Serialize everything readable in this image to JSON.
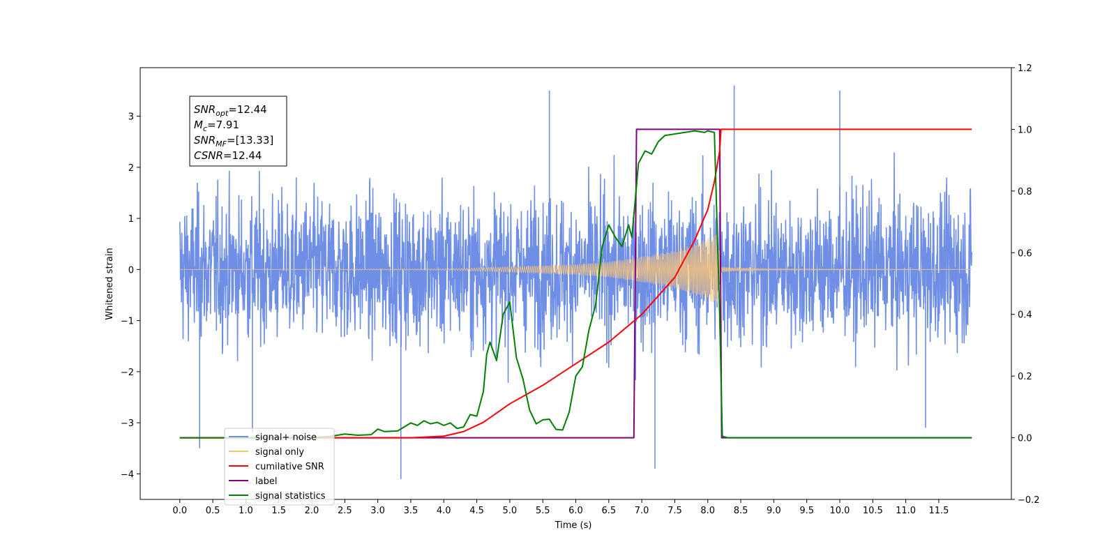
{
  "chart_data": {
    "type": "line",
    "xlabel": "Time (s)",
    "ylabel_left": "Whitened strain",
    "ylabel_right": "",
    "x_ticks": [
      "0.0",
      "0.5",
      "1.0",
      "1.5",
      "2.0",
      "2.5",
      "3.0",
      "3.5",
      "4.0",
      "4.5",
      "5.0",
      "5.5",
      "6.0",
      "6.5",
      "7.0",
      "7.5",
      "8.0",
      "8.5",
      "9.0",
      "9.5",
      "10.0",
      "10.5",
      "11.0",
      "11.5"
    ],
    "y_left_ticks": [
      "3",
      "2",
      "1",
      "0",
      "−1",
      "−2",
      "−3",
      "−4"
    ],
    "y_right_ticks": [
      "1.2",
      "1.0",
      "0.8",
      "0.6",
      "0.4",
      "0.2",
      "0.0",
      "−0.2"
    ],
    "xlim": [
      -0.6,
      12.6
    ],
    "ylim_left": [
      -4.5,
      3.95
    ],
    "ylim_right": [
      -0.2,
      1.2
    ],
    "info_box": [
      {
        "main": "SNR",
        "sub": "opt",
        "rest": "=12.44"
      },
      {
        "main": "M",
        "sub": "c",
        "rest": "=7.91"
      },
      {
        "main": "SNR",
        "sub": "MF",
        "rest": "=[13.33]"
      },
      {
        "main": "CSNR",
        "sub": "",
        "rest": "=12.44"
      }
    ],
    "legend": {
      "placement": "lower-left",
      "entries": [
        {
          "label": "signal+ noise",
          "color": "#6f8fe6"
        },
        {
          "label": "signal only",
          "color": "#f5c27a"
        },
        {
          "label": "cumilative SNR",
          "color": "#ff0000"
        },
        {
          "label": "label",
          "color": "#800080"
        },
        {
          "label": "signal statistics",
          "color": "#008000"
        }
      ]
    },
    "series": [
      {
        "name": "signal+ noise",
        "axis": "left",
        "color": "#6f8fe6",
        "x_range": [
          0.0,
          12.0
        ],
        "envelope": [
          [
            0.0,
            1.8
          ],
          [
            6.0,
            1.8
          ],
          [
            8.2,
            1.9
          ],
          [
            12.0,
            1.8
          ]
        ],
        "peaks": [
          [
            0.3,
            -3.5
          ],
          [
            1.1,
            -3.2
          ],
          [
            3.35,
            -4.1
          ],
          [
            5.6,
            3.5
          ],
          [
            7.2,
            -3.9
          ],
          [
            8.4,
            3.6
          ],
          [
            10.0,
            3.5
          ],
          [
            11.3,
            -3.1
          ]
        ]
      },
      {
        "name": "signal only",
        "axis": "left",
        "color": "#f5c27a",
        "x_range": [
          0.0,
          12.0
        ],
        "amplitude": [
          [
            0.0,
            0.0
          ],
          [
            4.0,
            0.01
          ],
          [
            5.0,
            0.05
          ],
          [
            6.0,
            0.1
          ],
          [
            6.5,
            0.15
          ],
          [
            7.0,
            0.25
          ],
          [
            7.5,
            0.37
          ],
          [
            7.8,
            0.5
          ],
          [
            8.0,
            0.6
          ],
          [
            8.15,
            0.7
          ],
          [
            8.2,
            0.05
          ],
          [
            8.4,
            0.03
          ],
          [
            9.0,
            0.01
          ],
          [
            12.0,
            0.0
          ]
        ]
      },
      {
        "name": "cumilative SNR",
        "axis": "right",
        "color": "#ff0000",
        "x": [
          0.0,
          3.5,
          4.0,
          4.3,
          4.6,
          5.0,
          5.5,
          6.0,
          6.5,
          7.0,
          7.5,
          7.8,
          8.0,
          8.1,
          8.18,
          8.2,
          12.0
        ],
        "y": [
          0.0,
          0.0,
          0.005,
          0.02,
          0.05,
          0.11,
          0.17,
          0.24,
          0.31,
          0.4,
          0.52,
          0.64,
          0.74,
          0.83,
          0.93,
          1.0,
          1.0
        ]
      },
      {
        "name": "label",
        "axis": "right",
        "color": "#800080",
        "x": [
          0.0,
          6.88,
          6.92,
          8.18,
          8.21,
          12.0
        ],
        "y": [
          0.0,
          0.0,
          1.0,
          1.0,
          0.0,
          0.0
        ]
      },
      {
        "name": "signal statistics",
        "axis": "right",
        "color": "#008000",
        "x": [
          0.0,
          2.0,
          2.3,
          2.5,
          2.7,
          2.9,
          3.0,
          3.1,
          3.3,
          3.5,
          3.6,
          3.7,
          3.8,
          3.9,
          4.0,
          4.1,
          4.2,
          4.3,
          4.4,
          4.5,
          4.6,
          4.65,
          4.7,
          4.8,
          4.9,
          5.0,
          5.1,
          5.2,
          5.3,
          5.4,
          5.5,
          5.6,
          5.7,
          5.8,
          5.9,
          6.0,
          6.1,
          6.2,
          6.3,
          6.4,
          6.5,
          6.6,
          6.7,
          6.8,
          6.85,
          6.95,
          7.05,
          7.15,
          7.25,
          7.35,
          7.5,
          7.65,
          7.8,
          7.95,
          8.0,
          8.1,
          8.18,
          8.22,
          8.3,
          12.0
        ],
        "y": [
          0.0,
          0.0,
          0.005,
          0.012,
          0.008,
          0.01,
          0.028,
          0.02,
          0.022,
          0.048,
          0.04,
          0.055,
          0.045,
          0.05,
          0.04,
          0.048,
          0.03,
          0.035,
          0.075,
          0.07,
          0.15,
          0.27,
          0.31,
          0.25,
          0.4,
          0.44,
          0.26,
          0.19,
          0.09,
          0.045,
          0.058,
          0.06,
          0.027,
          0.025,
          0.083,
          0.2,
          0.23,
          0.35,
          0.43,
          0.62,
          0.69,
          0.65,
          0.62,
          0.69,
          0.65,
          0.89,
          0.93,
          0.92,
          0.96,
          0.98,
          0.985,
          0.99,
          0.995,
          0.99,
          0.995,
          0.99,
          0.4,
          0.005,
          0.0,
          0.0
        ]
      }
    ]
  }
}
